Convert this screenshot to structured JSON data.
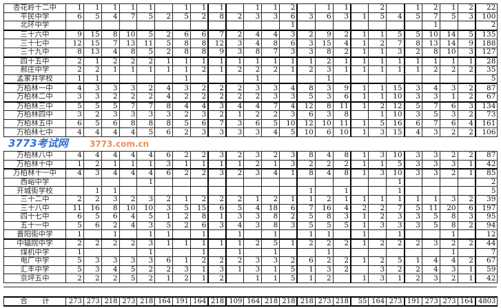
{
  "top_rows": [
    {
      "name": "杏花岭十二中",
      "values": [
        "1",
        "1",
        "1",
        "1",
        "1",
        "",
        "1",
        "1",
        "1",
        "",
        "1",
        "1",
        "2",
        "",
        "1",
        "1",
        "",
        "2",
        "",
        "1",
        "2",
        "1",
        "2"
      ],
      "total": "22"
    },
    {
      "name": "平民中学",
      "values": [
        "6",
        "5",
        "4",
        "7",
        "5",
        "2",
        "5",
        "2",
        "8",
        "2",
        "3",
        "3",
        "6",
        "3",
        "6",
        "3",
        "1",
        "5",
        "4",
        "5",
        "7",
        "5",
        "3"
      ],
      "total": "100"
    },
    {
      "name": "北环中学",
      "values": [
        "",
        "",
        "",
        "",
        "",
        "",
        "",
        "",
        "",
        "",
        "",
        "",
        "1",
        "",
        "",
        "",
        "",
        "",
        "",
        "",
        "1",
        "",
        ""
      ],
      "total": "2"
    },
    {
      "name": "三十六中",
      "values": [
        "9",
        "15",
        "8",
        "10",
        "5",
        "2",
        "6",
        "6",
        "7",
        "2",
        "4",
        "4",
        "3",
        "2",
        "9",
        "2",
        "1",
        "1",
        "5",
        "5",
        "10",
        "14",
        "5"
      ],
      "total": "135"
    },
    {
      "name": "三十七中",
      "values": [
        "12",
        "15",
        "7",
        "13",
        "11",
        "5",
        "8",
        "8",
        "12",
        "3",
        "4",
        "8",
        "6",
        "3",
        "15",
        "4",
        "1",
        "2",
        "7",
        "8",
        "13",
        "14",
        "9"
      ],
      "total": "188"
    },
    {
      "name": "三十九中",
      "values": [
        "8",
        "13",
        "4",
        "8",
        "5",
        "2",
        "8",
        "8",
        "9",
        "3",
        "8",
        "7",
        "3",
        "3",
        "8",
        "2",
        "1",
        "1",
        "3",
        "2",
        "8",
        "10",
        "3"
      ],
      "total": "127"
    },
    {
      "name": "四十五中",
      "values": [
        "2",
        "1",
        "2",
        "2",
        "2",
        "1",
        "1",
        "1",
        "1",
        "1",
        "1",
        "1",
        "1",
        "1",
        "2",
        "1",
        "1",
        "1",
        "1",
        "1",
        "1",
        "1",
        "1"
      ],
      "total": "28"
    },
    {
      "name": "郝庄中学",
      "values": [
        "2",
        "2",
        "1",
        "1",
        "1",
        "1",
        "1",
        "2",
        "1",
        "2",
        "2",
        "2",
        "1",
        "2",
        "3",
        "1",
        "1",
        "1",
        "1",
        "1",
        "2",
        "2",
        "2"
      ],
      "total": "35"
    },
    {
      "name": "孟家井学校",
      "values": [
        "1",
        "1",
        "",
        "",
        "",
        "",
        "1",
        "",
        "",
        "",
        "1",
        "",
        "",
        "",
        "1",
        "",
        "",
        "",
        "",
        "",
        "",
        "",
        ""
      ],
      "total": "5"
    },
    {
      "name": "万柏林一中",
      "values": [
        "4",
        "3",
        "3",
        "3",
        "2",
        "4",
        "3",
        "2",
        "2",
        "2",
        "3",
        "3",
        "4",
        "8",
        "3",
        "9",
        "1",
        "1",
        "15",
        "3",
        "4",
        "3",
        "2"
      ],
      "total": "87"
    },
    {
      "name": "万柏林二中",
      "values": [
        "3",
        "3",
        "2",
        "2",
        "2",
        "4",
        "2",
        "2",
        "2",
        "2",
        "2",
        "3",
        "3",
        "5",
        "3",
        "6",
        "1",
        "1",
        "10",
        "3",
        "3",
        "1",
        "2"
      ],
      "total": "67"
    },
    {
      "name": "万柏林三中",
      "values": [
        "5",
        "5",
        "5",
        "7",
        "7",
        "8",
        "4",
        "4",
        "3",
        "4",
        "4",
        "7",
        "4",
        "12",
        "8",
        "11",
        "1",
        "2",
        "12",
        "5",
        "7",
        "6",
        "3"
      ],
      "total": "134"
    },
    {
      "name": "万柏林四中",
      "values": [
        "3",
        "2",
        "3",
        "3",
        "3",
        "3",
        "2",
        "3",
        "2",
        "1",
        "2",
        "2",
        "3",
        "6",
        "3",
        "8",
        "",
        "1",
        "10",
        "3",
        "5",
        "3",
        "2"
      ],
      "total": "73"
    },
    {
      "name": "万柏林五中",
      "values": [
        "6",
        "5",
        "6",
        "8",
        "8",
        "8",
        "5",
        "6",
        "7",
        "3",
        "6",
        "5",
        "10",
        "12",
        "10",
        "11",
        "1",
        "5",
        "16",
        "6",
        "7",
        "6",
        "4"
      ],
      "total": "161"
    },
    {
      "name": "万柏林七中",
      "values": [
        "4",
        "4",
        "4",
        "4",
        "5",
        "6",
        "2",
        "3",
        "3",
        "3",
        "3",
        "4",
        "5",
        "10",
        "6",
        "10",
        "1",
        "3",
        "15",
        "4",
        "3",
        "2",
        "2"
      ],
      "total": "106"
    }
  ],
  "bottom_rows": [
    {
      "name": "万柏林八中",
      "values": [
        "4",
        "4",
        "4",
        "4",
        "4",
        "6",
        "2",
        "2",
        "3",
        "2",
        "3",
        "2",
        "3",
        "8",
        "4",
        "8",
        "1",
        "3",
        "10",
        "3",
        "3",
        "2",
        "2"
      ],
      "total": "87"
    },
    {
      "name": "万柏林十中",
      "values": [
        "1",
        "2",
        "1",
        "1",
        "1",
        "3",
        "1",
        "1",
        "1",
        "1",
        "2",
        "1",
        "3",
        "2",
        "2",
        "2",
        "1",
        "1",
        "5",
        "3",
        "3",
        "3",
        "1"
      ],
      "total": "42"
    },
    {
      "name": "万柏林十一中",
      "values": [
        "4",
        "3",
        "4",
        "4",
        "4",
        "6",
        "2",
        "2",
        "3",
        "2",
        "3",
        "4",
        "1",
        "8",
        "4",
        "8",
        "1",
        "3",
        "10",
        "3",
        "3",
        "2",
        "1"
      ],
      "total": "85"
    },
    {
      "name": "西峪中学",
      "values": [
        "",
        "",
        "",
        "",
        "1",
        "",
        "",
        "",
        "",
        "",
        "",
        "",
        "",
        "",
        "",
        "",
        "",
        "",
        "1",
        "",
        "",
        "",
        ""
      ],
      "total": "2"
    },
    {
      "name": "开城街学校",
      "values": [
        "",
        "1",
        "1",
        "",
        "",
        "",
        "",
        "",
        "",
        "",
        "",
        "",
        "",
        "1",
        "",
        "1",
        "",
        "",
        "1",
        "",
        "",
        "",
        ""
      ],
      "total": "5"
    },
    {
      "name": "三十二中",
      "values": [
        "2",
        "2",
        "3",
        "2",
        "3",
        "2",
        "1",
        "2",
        "2",
        "2",
        "1",
        "2",
        "1",
        "1",
        "2",
        "1",
        "1",
        "1",
        "1",
        "1",
        "1",
        "3",
        "2"
      ],
      "total": "39"
    },
    {
      "name": "三十八中",
      "values": [
        "11",
        "16",
        "8",
        "10",
        "10",
        "3",
        "5",
        "15",
        "6",
        "5",
        "4",
        "18",
        "6",
        "7",
        "16",
        "4",
        "2",
        "2",
        "7",
        "5",
        "11",
        "20",
        "6"
      ],
      "total": "197"
    },
    {
      "name": "四十七中",
      "values": [
        "6",
        "5",
        "6",
        "4",
        "5",
        "1",
        "2",
        "8",
        "1",
        "3",
        "3",
        "8",
        "2",
        "5",
        "8",
        "3",
        "1",
        "2",
        "3",
        "3",
        "5",
        "8",
        "3"
      ],
      "total": "95"
    },
    {
      "name": "五十一中",
      "values": [
        "5",
        "6",
        "2",
        "4",
        "3",
        "5",
        "2",
        "6",
        "3",
        "4",
        "3",
        "8",
        "3",
        "5",
        "5",
        "5",
        "1",
        "3",
        "3",
        "3",
        "5",
        "8",
        "2"
      ],
      "total": "94"
    },
    {
      "name": "晋阳街中学",
      "values": [
        "1",
        "",
        "1",
        "",
        "1",
        "1",
        "",
        "1",
        "",
        "1",
        "",
        "1",
        "",
        "1",
        "1",
        "",
        "1",
        "",
        "1",
        "",
        "",
        "1",
        ""
      ],
      "total": "12"
    },
    {
      "name": "中辐院中学",
      "values": [
        "2",
        "2",
        "2",
        "2",
        "3",
        "1",
        "1",
        "1",
        "1",
        "1",
        "2",
        "5",
        "1",
        "2",
        "2",
        "2",
        "1",
        "2",
        "2",
        "2",
        "3",
        "2",
        "2"
      ],
      "total": "44"
    },
    {
      "name": "煤机中学",
      "values": [
        "1",
        "",
        "",
        "",
        "1",
        "",
        "",
        "1",
        "",
        "1",
        "",
        "1",
        "",
        "",
        "1",
        "",
        "",
        "",
        "",
        "",
        "",
        "1",
        ""
      ],
      "total": "7"
    },
    {
      "name": "电厂中学",
      "values": [
        "5",
        "3",
        "3",
        "3",
        "3",
        "6",
        "1",
        "2",
        "2",
        "2",
        "3",
        "3",
        "2",
        "6",
        "2",
        "2",
        "1",
        "2",
        "5",
        "1",
        "4",
        "4",
        "2"
      ],
      "total": "67"
    },
    {
      "name": "汇丰中学",
      "values": [
        "5",
        "3",
        "4",
        "5",
        "2",
        "2",
        "3",
        "1",
        "3",
        "1",
        "3",
        "1",
        "5",
        "1",
        "3",
        "2",
        "",
        "3",
        "2",
        "2",
        "4",
        "3",
        "1"
      ],
      "total": "59"
    },
    {
      "name": "京坪五中",
      "values": [
        "2",
        "2",
        "2",
        "5",
        "2",
        "1",
        "2",
        "1",
        "2",
        "",
        "1",
        "1",
        "5",
        "1",
        "2",
        "",
        "1",
        "3",
        "1",
        "2",
        "3",
        "2",
        "1"
      ],
      "total": "42"
    }
  ],
  "total_row": {
    "label": "合　　计",
    "values": [
      "273",
      "273",
      "218",
      "273",
      "218",
      "164",
      "191",
      "164",
      "218",
      "109",
      "164",
      "218",
      "218",
      "218",
      "273",
      "218",
      "55",
      "164",
      "273",
      "191",
      "273",
      "273",
      "164"
    ],
    "total": "4803"
  },
  "watermark": {
    "logo": "3773考试网",
    "url": "3773.com.cn",
    "colors": {
      "logo": "#2f6fd8",
      "url": "#f08c50"
    }
  }
}
